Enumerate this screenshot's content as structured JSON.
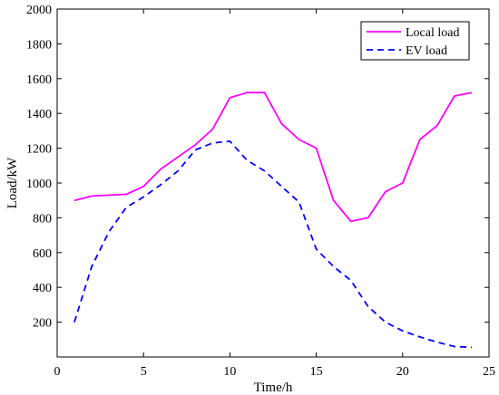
{
  "chart_data": {
    "type": "line",
    "title": "",
    "xlabel": "Time/h",
    "ylabel": "Load/kW",
    "xlim": [
      0,
      25
    ],
    "ylim": [
      0,
      2000
    ],
    "xticks": [
      0,
      5,
      10,
      15,
      20,
      25
    ],
    "yticks": [
      200,
      400,
      600,
      800,
      1000,
      1200,
      1400,
      1600,
      1800,
      2000
    ],
    "grid": false,
    "legend": "top-right",
    "series": [
      {
        "name": "Local load",
        "color": "#ff00ff",
        "dash": "solid",
        "x": [
          1,
          2,
          3,
          4,
          5,
          6,
          7,
          8,
          9,
          10,
          11,
          12,
          13,
          14,
          15,
          16,
          17,
          18,
          19,
          20,
          21,
          22,
          23,
          24
        ],
        "y": [
          900,
          925,
          930,
          935,
          980,
          1080,
          1150,
          1220,
          1310,
          1490,
          1520,
          1520,
          1340,
          1250,
          1200,
          900,
          780,
          800,
          950,
          1000,
          1250,
          1330,
          1500,
          1520
        ]
      },
      {
        "name": "EV load",
        "color": "#0000ff",
        "dash": "dashed",
        "x": [
          1,
          2,
          3,
          4,
          5,
          6,
          7,
          8,
          9,
          10,
          11,
          12,
          13,
          14,
          15,
          16,
          17,
          18,
          19,
          20,
          21,
          22,
          23,
          24
        ],
        "y": [
          200,
          520,
          720,
          860,
          920,
          990,
          1070,
          1190,
          1230,
          1240,
          1130,
          1070,
          980,
          890,
          620,
          520,
          440,
          290,
          200,
          150,
          115,
          85,
          60,
          55
        ]
      }
    ]
  }
}
